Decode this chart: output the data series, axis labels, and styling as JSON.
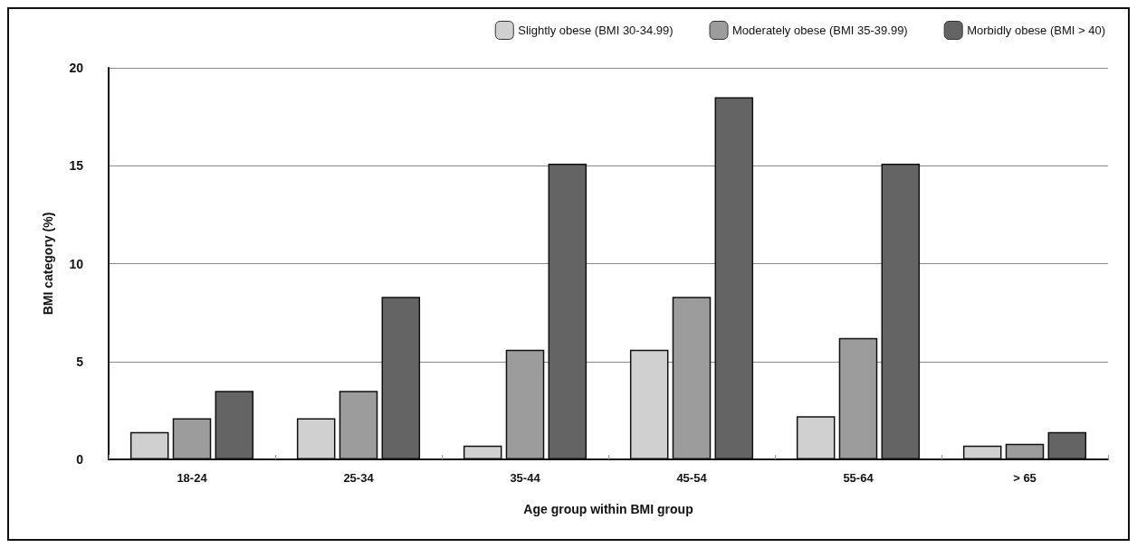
{
  "chart_data": {
    "type": "bar",
    "xlabel": "Age group within BMI group",
    "ylabel": "BMI category (%)",
    "categories": [
      "18-24",
      "25-34",
      "35-44",
      "45-54",
      "55-64",
      "> 65"
    ],
    "series": [
      {
        "name": "Slightly obese (BMI 30-34.99)",
        "color": "#d0d0d0",
        "values": [
          1.4,
          2.1,
          0.7,
          5.6,
          2.2,
          0.7
        ]
      },
      {
        "name": "Moderately obese (BMI 35-39.99)",
        "color": "#9c9c9c",
        "values": [
          2.1,
          3.5,
          5.6,
          8.3,
          6.2,
          0.8
        ]
      },
      {
        "name": "Morbidly obese (BMI > 40)",
        "color": "#646464",
        "values": [
          3.5,
          8.3,
          15.1,
          18.5,
          15.1,
          1.4
        ]
      }
    ],
    "ylim": [
      0,
      20
    ],
    "yticks": [
      0,
      5,
      10,
      15,
      20
    ],
    "grid": "y",
    "legend": "top right"
  }
}
